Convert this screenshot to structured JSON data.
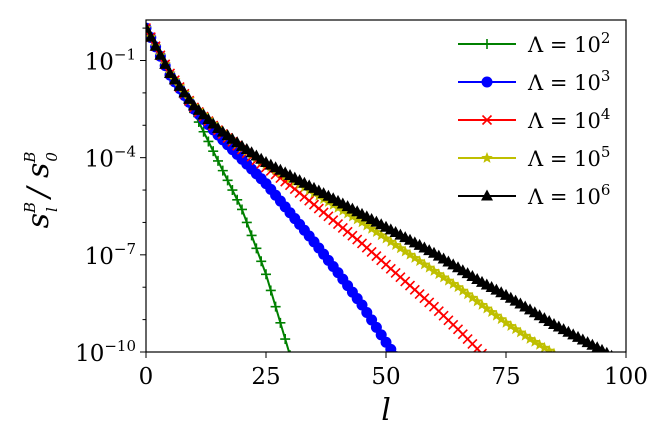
{
  "chart_data": {
    "type": "line",
    "xlabel": "l",
    "ylabel": {
      "base": "s",
      "sub_num": "l",
      "sub_den": "0",
      "sup": "B"
    },
    "x_scale": "linear",
    "y_scale": "log",
    "xlim": [
      0,
      100
    ],
    "ylim": [
      1e-10,
      1
    ],
    "x_ticks": [
      {
        "value": 0,
        "label": "0"
      },
      {
        "value": 25,
        "label": "25"
      },
      {
        "value": 50,
        "label": "50"
      },
      {
        "value": 75,
        "label": "75"
      },
      {
        "value": 100,
        "label": "100"
      }
    ],
    "y_ticks": [
      {
        "exp": -1,
        "base": "10",
        "sup": "−1"
      },
      {
        "exp": -4,
        "base": "10",
        "sup": "−4"
      },
      {
        "exp": -7,
        "base": "10",
        "sup": "−7"
      },
      {
        "exp": -10,
        "base": "10",
        "sup": "−10"
      }
    ],
    "grid": false,
    "legend_position": "top-right",
    "series": [
      {
        "name_base": "Λ = 10",
        "name_sup": "2",
        "color": "#008000",
        "marker": "plus",
        "x": [
          0,
          5,
          10,
          15,
          20,
          25,
          30
        ],
        "log10_y": [
          0,
          -1.45,
          -2.6,
          -4.1,
          -5.6,
          -7.6,
          -10.1
        ]
      },
      {
        "name_base": "Λ = 10",
        "name_sup": "3",
        "color": "#0000ff",
        "marker": "circle",
        "x": [
          0,
          5,
          10,
          15,
          20,
          25,
          30,
          35,
          40,
          45,
          50,
          55
        ],
        "log10_y": [
          0,
          -1.45,
          -2.5,
          -3.3,
          -4.05,
          -4.8,
          -5.7,
          -6.6,
          -7.55,
          -8.55,
          -9.7,
          -10.8
        ]
      },
      {
        "name_base": "Λ = 10",
        "name_sup": "4",
        "color": "#ff0000",
        "marker": "x",
        "x": [
          0,
          5,
          10,
          15,
          20,
          25,
          30,
          35,
          40,
          45,
          50,
          55,
          60,
          65,
          70
        ],
        "log10_y": [
          0,
          -1.4,
          -2.45,
          -3.15,
          -3.75,
          -4.3,
          -4.85,
          -5.45,
          -6.05,
          -6.65,
          -7.3,
          -7.95,
          -8.6,
          -9.3,
          -10.05
        ]
      },
      {
        "name_base": "Λ = 10",
        "name_sup": "5",
        "color": "#bfbf00",
        "marker": "star",
        "x": [
          0,
          5,
          10,
          15,
          20,
          25,
          30,
          35,
          40,
          45,
          50,
          55,
          60,
          65,
          70,
          75,
          80,
          85
        ],
        "log10_y": [
          0,
          -1.4,
          -2.4,
          -3.1,
          -3.7,
          -4.2,
          -4.65,
          -5.1,
          -5.55,
          -6.0,
          -6.5,
          -7.0,
          -7.5,
          -8.0,
          -8.55,
          -9.1,
          -9.6,
          -10.05
        ]
      },
      {
        "name_base": "Λ = 10",
        "name_sup": "6",
        "color": "#000000",
        "marker": "triangle",
        "x": [
          0,
          5,
          10,
          15,
          20,
          25,
          30,
          35,
          40,
          45,
          50,
          55,
          60,
          65,
          70,
          75,
          80,
          85,
          90,
          95,
          100
        ],
        "log10_y": [
          0,
          -1.4,
          -2.4,
          -3.1,
          -3.65,
          -4.15,
          -4.55,
          -4.95,
          -5.35,
          -5.75,
          -6.15,
          -6.55,
          -6.95,
          -7.4,
          -7.85,
          -8.25,
          -8.7,
          -9.15,
          -9.55,
          -9.95,
          -10.4
        ]
      }
    ]
  }
}
